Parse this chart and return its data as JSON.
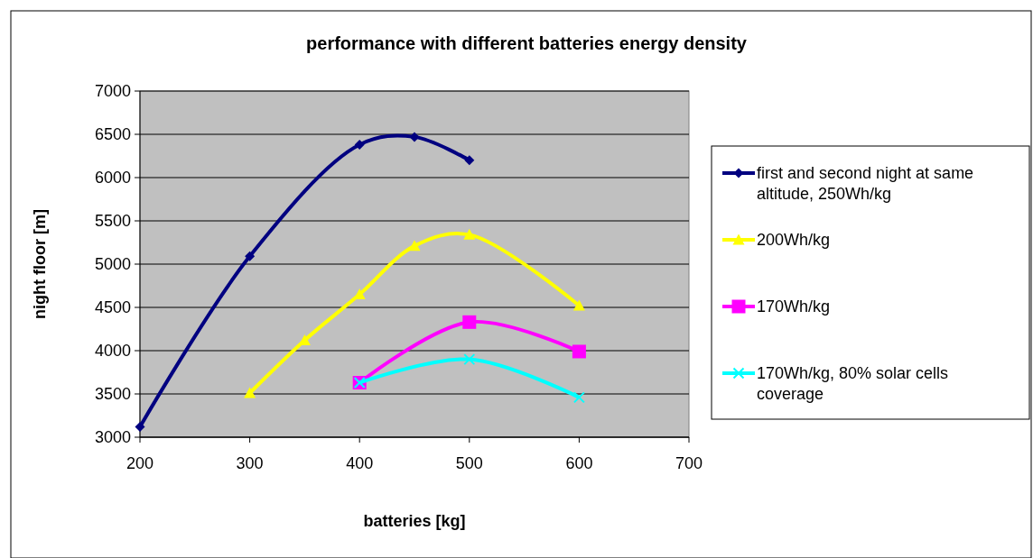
{
  "chart_data": {
    "type": "line",
    "title": "performance with different batteries energy density",
    "xlabel": "batteries [kg]",
    "ylabel": "night floor [m]",
    "xlim": [
      200,
      700
    ],
    "xticks": [
      200,
      300,
      400,
      500,
      600,
      700
    ],
    "ylim": [
      3000,
      7000
    ],
    "yticks": [
      3000,
      3500,
      4000,
      4500,
      5000,
      5500,
      6000,
      6500,
      7000
    ],
    "grid": "y",
    "legend": "right",
    "series": [
      {
        "name": "first and second night at same altitude, 250Wh/kg",
        "color": "#000080",
        "marker": "diamond",
        "x": [
          200,
          300,
          400,
          450,
          500
        ],
        "values": [
          3120,
          5090,
          6380,
          6470,
          6200
        ]
      },
      {
        "name": "200Wh/kg",
        "color": "#ffff00",
        "marker": "triangle",
        "x": [
          300,
          350,
          400,
          450,
          500,
          600
        ],
        "values": [
          3510,
          4120,
          4650,
          5210,
          5340,
          4520
        ]
      },
      {
        "name": "170Wh/kg",
        "color": "#ff00ff",
        "marker": "square",
        "x": [
          400,
          500,
          600
        ],
        "values": [
          3630,
          4330,
          3990
        ]
      },
      {
        "name": "170Wh/kg, 80% solar cells coverage",
        "color": "#00ffff",
        "marker": "cross",
        "x": [
          400,
          500,
          600
        ],
        "values": [
          3630,
          3900,
          3460
        ]
      }
    ]
  }
}
